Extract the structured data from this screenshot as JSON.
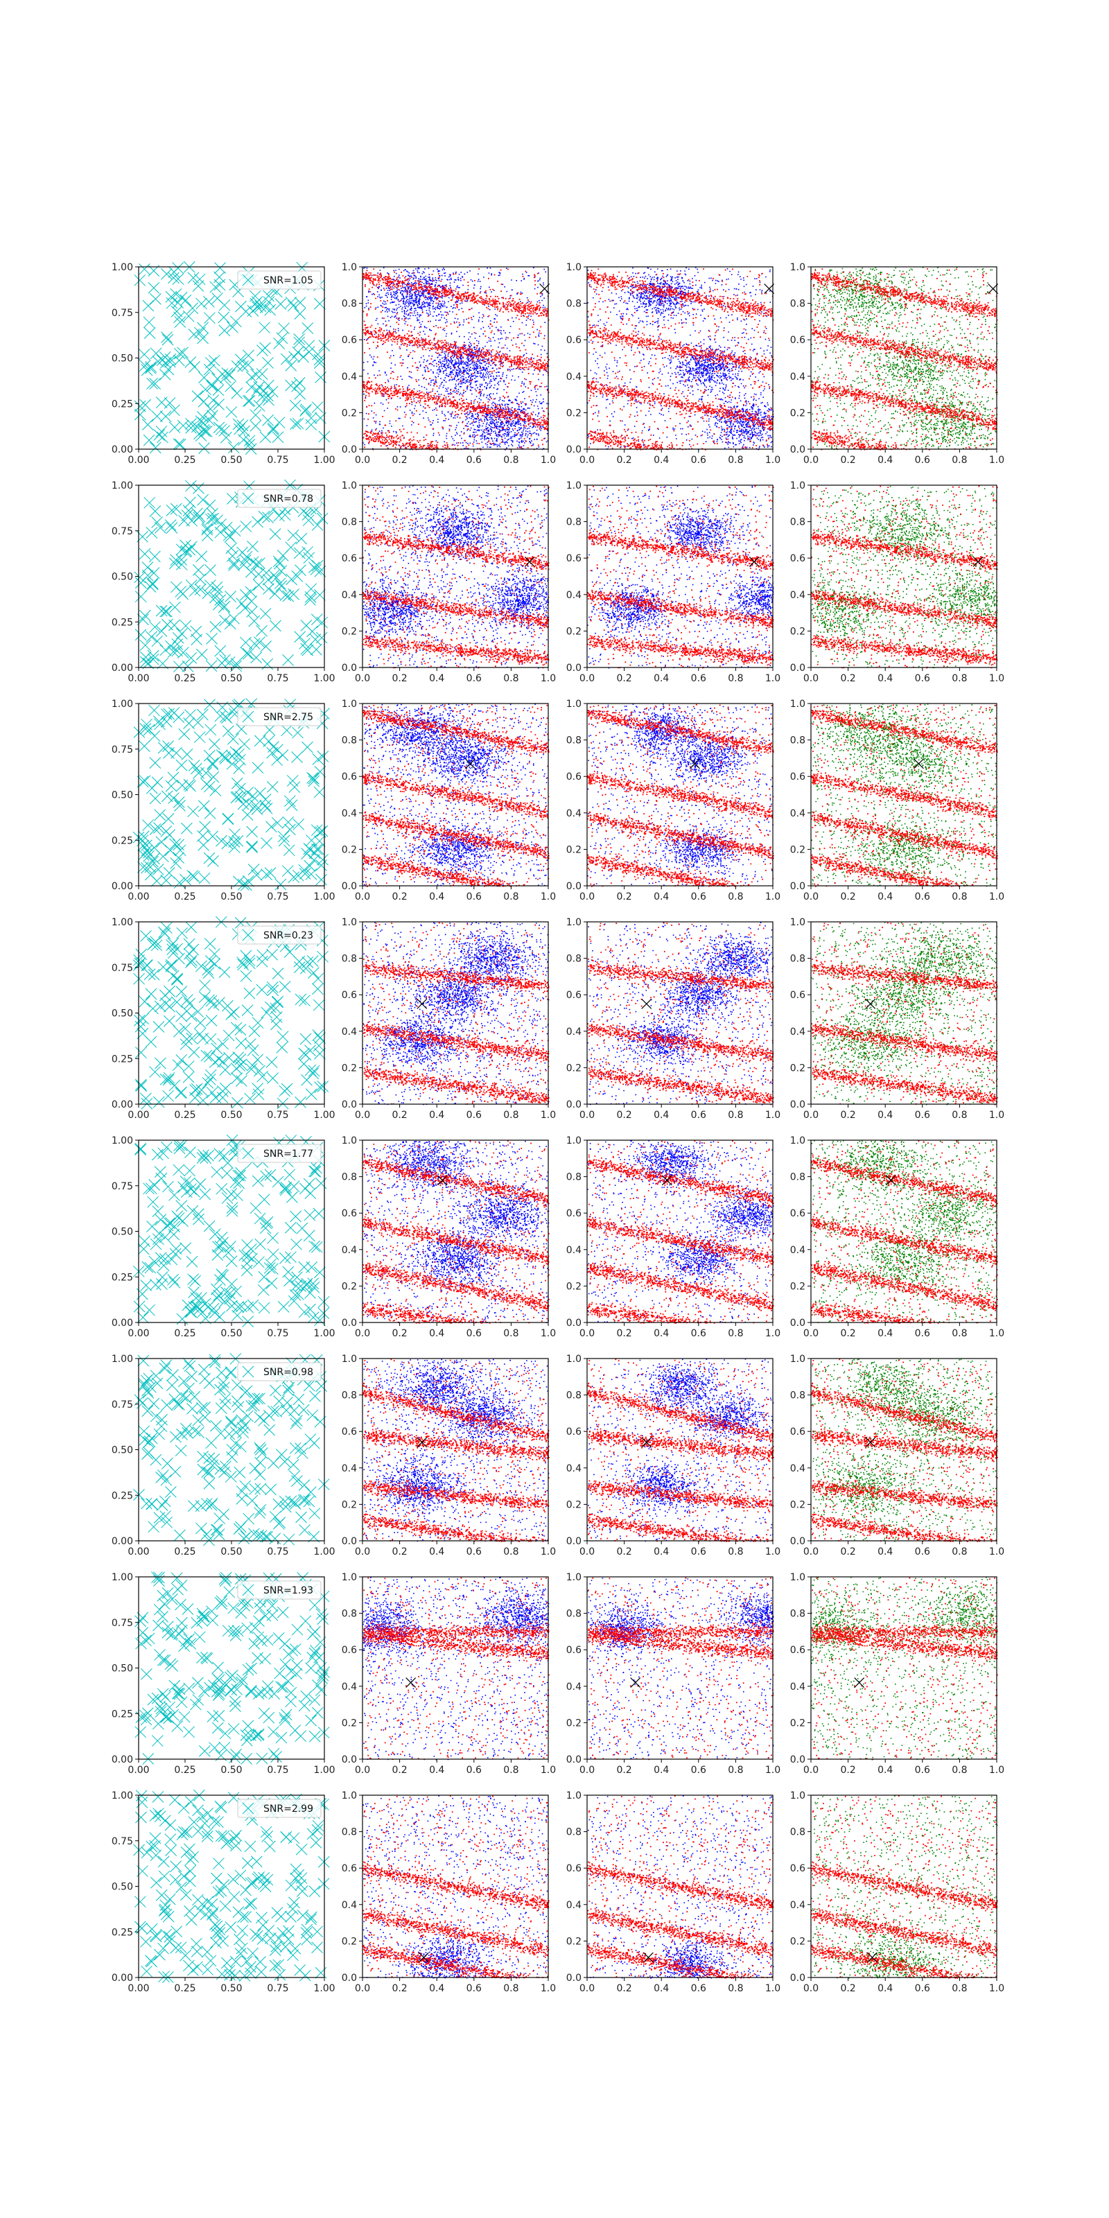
{
  "figure": {
    "background": "#ffffff",
    "rows": 8,
    "cols": 4
  },
  "colors": {
    "marker_panel": "#00bfbf",
    "blue": "#0000ff",
    "red": "#ff0000",
    "green": "#008000",
    "target": "#000000",
    "axes": "#000000"
  },
  "ticks": {
    "col0": [
      "0.00",
      "0.25",
      "0.50",
      "0.75",
      "1.00"
    ],
    "col0_values": [
      0,
      0.25,
      0.5,
      0.75,
      1.0
    ],
    "others": [
      "0.0",
      "0.2",
      "0.4",
      "0.6",
      "0.8",
      "1.0"
    ],
    "others_values": [
      0,
      0.2,
      0.4,
      0.6,
      0.8,
      1.0
    ]
  },
  "chart_data": [
    {
      "type": "scatter",
      "row": 0,
      "legend": "SNR=1.05",
      "xlim": [
        0,
        1
      ],
      "ylim": [
        0,
        1
      ],
      "target": [
        0.98,
        0.88
      ],
      "bands": [
        [
          0.95,
          -0.2
        ],
        [
          0.65,
          -0.2
        ],
        [
          0.35,
          -0.2
        ],
        [
          0.08,
          -0.2
        ]
      ],
      "blue_blobs": [
        [
          0.3,
          0.85
        ],
        [
          0.55,
          0.45
        ],
        [
          0.75,
          0.15
        ]
      ]
    },
    {
      "type": "scatter",
      "row": 1,
      "legend": "SNR=0.78",
      "xlim": [
        0,
        1
      ],
      "ylim": [
        0,
        1
      ],
      "target": [
        0.9,
        0.58
      ],
      "bands": [
        [
          0.72,
          -0.15
        ],
        [
          0.4,
          -0.15
        ],
        [
          0.15,
          -0.1
        ]
      ],
      "blue_blobs": [
        [
          0.15,
          0.32
        ],
        [
          0.85,
          0.38
        ],
        [
          0.5,
          0.75
        ]
      ]
    },
    {
      "type": "scatter",
      "row": 2,
      "legend": "SNR=2.75",
      "xlim": [
        0,
        1
      ],
      "ylim": [
        0,
        1
      ],
      "target": [
        0.58,
        0.67
      ],
      "bands": [
        [
          0.95,
          -0.2
        ],
        [
          0.6,
          -0.2
        ],
        [
          0.38,
          -0.2
        ],
        [
          0.15,
          -0.2
        ]
      ],
      "blue_blobs": [
        [
          0.55,
          0.7
        ],
        [
          0.5,
          0.2
        ],
        [
          0.3,
          0.85
        ]
      ]
    },
    {
      "type": "scatter",
      "row": 3,
      "legend": "SNR=0.23",
      "xlim": [
        0,
        1
      ],
      "ylim": [
        0,
        1
      ],
      "target": [
        0.32,
        0.55
      ],
      "bands": [
        [
          0.75,
          -0.1
        ],
        [
          0.42,
          -0.15
        ],
        [
          0.18,
          -0.15
        ]
      ],
      "blue_blobs": [
        [
          0.7,
          0.8
        ],
        [
          0.5,
          0.6
        ],
        [
          0.3,
          0.35
        ]
      ]
    },
    {
      "type": "scatter",
      "row": 4,
      "legend": "SNR=1.77",
      "xlim": [
        0,
        1
      ],
      "ylim": [
        0,
        1
      ],
      "target": [
        0.43,
        0.78
      ],
      "bands": [
        [
          0.88,
          -0.2
        ],
        [
          0.55,
          -0.2
        ],
        [
          0.3,
          -0.2
        ],
        [
          0.08,
          -0.15
        ]
      ],
      "blue_blobs": [
        [
          0.35,
          0.88
        ],
        [
          0.75,
          0.6
        ],
        [
          0.5,
          0.35
        ]
      ]
    },
    {
      "type": "scatter",
      "row": 5,
      "legend": "SNR=0.98",
      "xlim": [
        0,
        1
      ],
      "ylim": [
        0,
        1
      ],
      "target": [
        0.32,
        0.54
      ],
      "bands": [
        [
          0.82,
          -0.25
        ],
        [
          0.58,
          -0.1
        ],
        [
          0.3,
          -0.1
        ],
        [
          0.12,
          -0.15
        ]
      ],
      "blue_blobs": [
        [
          0.65,
          0.68
        ],
        [
          0.4,
          0.85
        ],
        [
          0.3,
          0.3
        ]
      ]
    },
    {
      "type": "scatter",
      "row": 6,
      "legend": "SNR=1.93",
      "xlim": [
        0,
        1
      ],
      "ylim": [
        0,
        1
      ],
      "target": [
        0.26,
        0.42
      ],
      "bands": [
        [
          0.68,
          -0.1
        ],
        [
          0.7,
          0.0
        ]
      ],
      "blue_blobs": [
        [
          0.85,
          0.78
        ],
        [
          0.1,
          0.72
        ]
      ]
    },
    {
      "type": "scatter",
      "row": 7,
      "legend": "SNR=2.99",
      "xlim": [
        0,
        1
      ],
      "ylim": [
        0,
        1
      ],
      "target": [
        0.33,
        0.11
      ],
      "bands": [
        [
          0.16,
          -0.2
        ],
        [
          0.35,
          -0.2
        ],
        [
          0.6,
          -0.2
        ]
      ],
      "blue_blobs": [
        [
          0.45,
          0.08
        ]
      ]
    }
  ]
}
